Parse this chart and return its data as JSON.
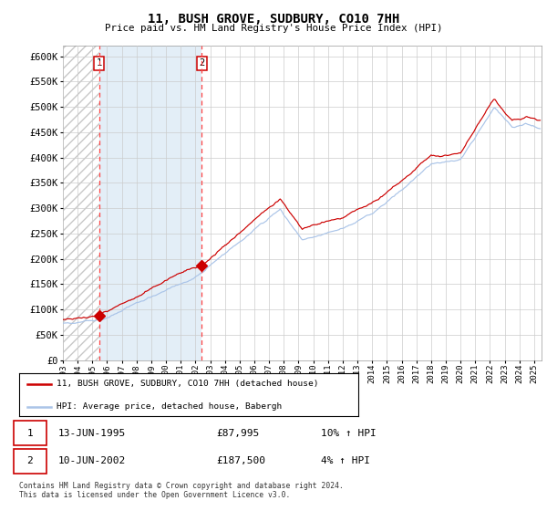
{
  "title": "11, BUSH GROVE, SUDBURY, CO10 7HH",
  "subtitle": "Price paid vs. HM Land Registry's House Price Index (HPI)",
  "legend_line1": "11, BUSH GROVE, SUDBURY, CO10 7HH (detached house)",
  "legend_line2": "HPI: Average price, detached house, Babergh",
  "sale1_date": "13-JUN-1995",
  "sale1_price": "£87,995",
  "sale1_hpi": "10% ↑ HPI",
  "sale2_date": "10-JUN-2002",
  "sale2_price": "£187,500",
  "sale2_hpi": "4% ↑ HPI",
  "footer": "Contains HM Land Registry data © Crown copyright and database right 2024.\nThis data is licensed under the Open Government Licence v3.0.",
  "hpi_color": "#aac4e8",
  "price_color": "#cc0000",
  "sale_marker_color": "#cc0000",
  "vline_color": "#ff4444",
  "bg_shaded_color": "#d8e8f5",
  "hatch_color": "#c8c8c8",
  "grid_color": "#cccccc",
  "ylim": [
    0,
    620000
  ],
  "yticks": [
    0,
    50000,
    100000,
    150000,
    200000,
    250000,
    300000,
    350000,
    400000,
    450000,
    500000,
    550000,
    600000
  ],
  "xmin": 1993,
  "xmax": 2025.5,
  "sale1_year": 1995.45,
  "sale2_year": 2002.44,
  "sale1_price_val": 87995,
  "sale2_price_val": 187500
}
